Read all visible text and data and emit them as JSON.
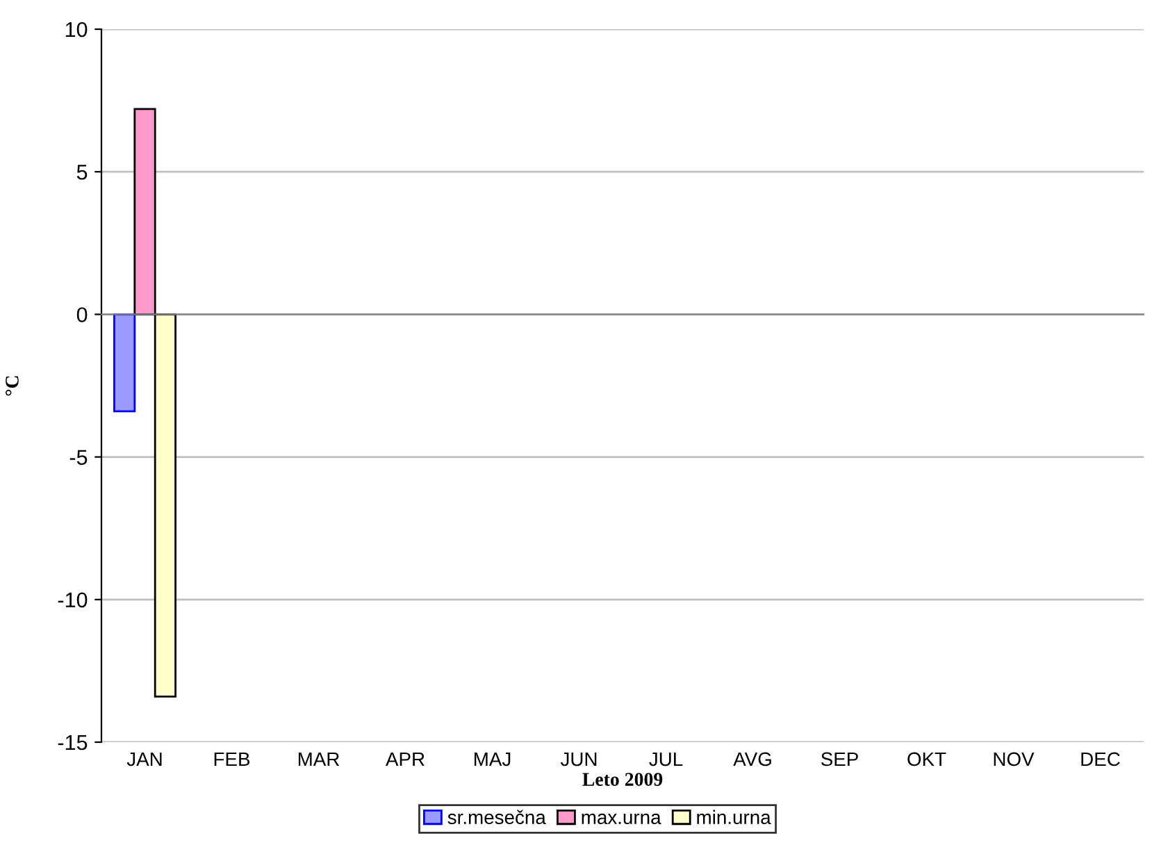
{
  "chart_data": {
    "type": "bar",
    "xlabel": "Leto 2009",
    "ylabel": "°C",
    "categories": [
      "JAN",
      "FEB",
      "MAR",
      "APR",
      "MAJ",
      "JUN",
      "JUL",
      "AVG",
      "SEP",
      "OKT",
      "NOV",
      "DEC"
    ],
    "series": [
      {
        "name": "sr.mesečna",
        "color": "#9999ff",
        "values": [
          -3.4,
          null,
          null,
          null,
          null,
          null,
          null,
          null,
          null,
          null,
          null,
          null
        ]
      },
      {
        "name": "max.urna",
        "color": "#ff99cc",
        "values": [
          7.2,
          null,
          null,
          null,
          null,
          null,
          null,
          null,
          null,
          null,
          null,
          null
        ]
      },
      {
        "name": "min.urna",
        "color": "#ffffcc",
        "values": [
          -13.4,
          null,
          null,
          null,
          null,
          null,
          null,
          null,
          null,
          null,
          null,
          null
        ]
      }
    ],
    "ylim": [
      -15,
      10
    ],
    "yticks": [
      -15,
      -10,
      -5,
      0,
      5,
      10
    ],
    "grid": "y",
    "legend": "bottom"
  }
}
